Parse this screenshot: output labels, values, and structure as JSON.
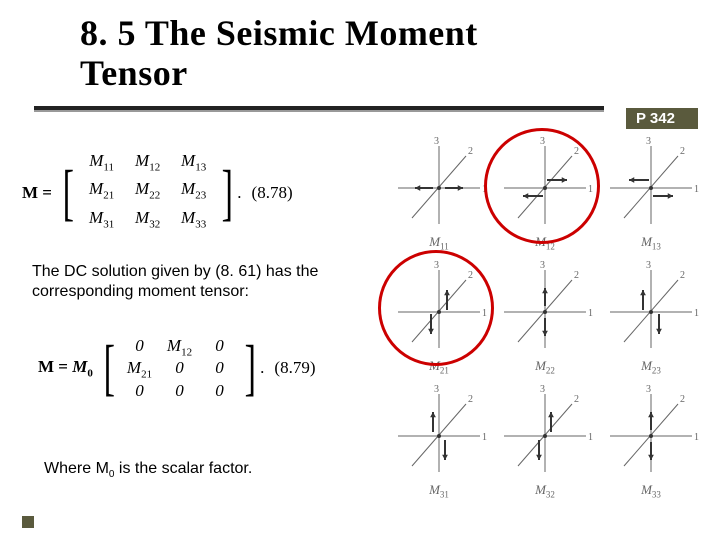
{
  "title_line1": "8. 5 The Seismic Moment",
  "title_line2": "Tensor",
  "page_badge": "P 342",
  "eq878": {
    "lhs": "M =",
    "rows": [
      [
        "M11",
        "M12",
        "M13"
      ],
      [
        "M21",
        "M22",
        "M23"
      ],
      [
        "M31",
        "M32",
        "M33"
      ]
    ],
    "number": "(8.78)"
  },
  "dc_text": "The DC solution given by (8. 61) has the corresponding moment tensor:",
  "eq879": {
    "lhs_pre": "M = M",
    "lhs_sub": "0",
    "rows": [
      [
        "0",
        "M12",
        "0"
      ],
      [
        "M21",
        "0",
        "0"
      ],
      [
        "0",
        "0",
        "0"
      ]
    ],
    "number": "(8.79)"
  },
  "scalar_text_pre": "Where M",
  "scalar_text_sub": "0",
  "scalar_text_post": " is the scalar factor.",
  "axis_labels": [
    "1",
    "2",
    "3"
  ],
  "mt": [
    {
      "label": "M",
      "sub": "11",
      "arrows": [
        "h-out"
      ]
    },
    {
      "label": "M",
      "sub": "12",
      "arrows": [
        "h-right-pair"
      ]
    },
    {
      "label": "M",
      "sub": "13",
      "arrows": [
        "h-left-pair"
      ]
    },
    {
      "label": "M",
      "sub": "21",
      "arrows": [
        "v-up-pair"
      ]
    },
    {
      "label": "M",
      "sub": "22",
      "arrows": [
        "v-out"
      ]
    },
    {
      "label": "M",
      "sub": "23",
      "arrows": [
        "v-down-pair"
      ]
    },
    {
      "label": "M",
      "sub": "31",
      "arrows": [
        "d-down-pair"
      ]
    },
    {
      "label": "M",
      "sub": "32",
      "arrows": [
        "d-up-pair"
      ]
    },
    {
      "label": "M",
      "sub": "33",
      "arrows": [
        "d-out"
      ]
    }
  ],
  "highlights": [
    1,
    3
  ],
  "colors": {
    "rule": "#222222",
    "badge_bg": "#5a5a3d",
    "badge_fg": "#ffffff",
    "highlight": "#c00000",
    "glyph": "#666666"
  }
}
